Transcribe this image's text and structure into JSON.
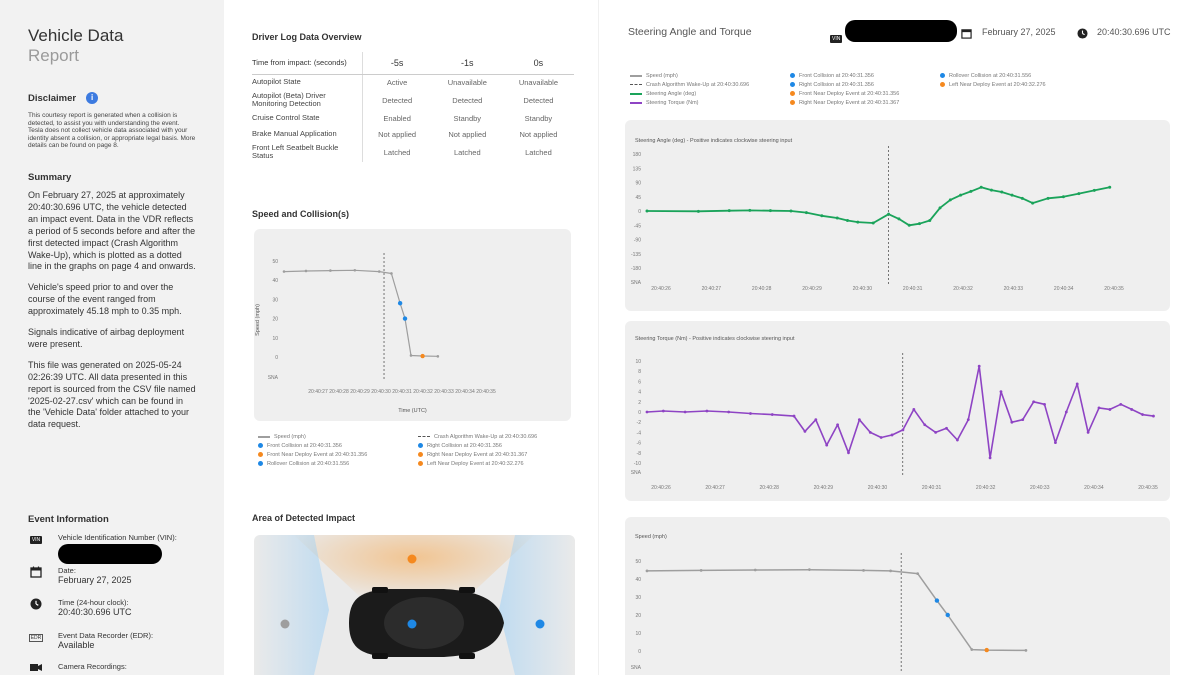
{
  "sidebar": {
    "title": "Vehicle Data",
    "subtitle": "Report",
    "disclaimer_heading": "Disclaimer",
    "disclaimer_text": "This courtesy report is generated when a collision is detected, to assist you with understanding the event. Tesla does not collect vehicle data associated with your identity absent a collision, or appropriate legal basis. More details can be found on page 8.",
    "summary_heading": "Summary",
    "summary_p1": "On February 27, 2025 at approximately 20:40:30.696 UTC, the vehicle detected an impact event. Data in the VDR reflects a period of 5 seconds before and after the first detected impact (Crash Algorithm Wake-Up), which is plotted as a dotted line in the graphs on page 4 and onwards.",
    "summary_p2": "Vehicle's speed prior to and over the course of the event ranged from approximately 45.18 mph to 0.35 mph.",
    "summary_p3": "Signals indicative of airbag deployment were present.",
    "summary_p4": "This file was generated on 2025-05-24 02:26:39 UTC. All data presented in this report is sourced from the CSV file named '2025-02-27.csv' which can be found in the 'Vehicle Data' folder attached to your data request.",
    "event_heading": "Event Information",
    "vin_label": "Vehicle Identification Number (VIN):",
    "date_label": "Date:",
    "date_value": "February 27, 2025",
    "time_label": "Time (24-hour clock):",
    "time_value": "20:40:30.696 UTC",
    "edr_label": "Event Data Recorder (EDR):",
    "edr_value": "Available",
    "camera_label": "Camera Recordings:",
    "vin_badge": "VIN",
    "edr_badge": "EDR"
  },
  "driver_log": {
    "title": "Driver Log Data Overview",
    "header_label": "Time from impact: (seconds)",
    "columns": [
      "-5s",
      "-1s",
      "0s"
    ],
    "rows": [
      {
        "label": "Autopilot State",
        "values": [
          "Active",
          "Unavailable",
          "Unavailable"
        ]
      },
      {
        "label": "Autopilot (Beta) Driver Monitoring Detection",
        "values": [
          "Detected",
          "Detected",
          "Detected"
        ]
      },
      {
        "label": "Cruise Control State",
        "values": [
          "Enabled",
          "Standby",
          "Standby"
        ]
      },
      {
        "label": "Brake Manual Application",
        "values": [
          "Not applied",
          "Not applied",
          "Not applied"
        ]
      },
      {
        "label": "Front Left Seatbelt Buckle Status",
        "values": [
          "Latched",
          "Latched",
          "Latched"
        ]
      }
    ]
  },
  "speed_section": {
    "title": "Speed and Collision(s)",
    "xlabel": "Time (UTC)",
    "ylabel": "Speed (mph)"
  },
  "impact_section": {
    "title": "Area of Detected Impact"
  },
  "right_header": {
    "title": "Steering Angle and Torque",
    "vin_badge": "VIN",
    "date": "February 27, 2025",
    "time": "20:40:30.696 UTC"
  },
  "legends": {
    "speed_chart": [
      {
        "label": "Speed (mph)",
        "kind": "line",
        "color": "#9e9e9e"
      },
      {
        "label": "Crash Algorithm Wake-Up at 20:40:30.696",
        "kind": "dash",
        "color": "#555555"
      },
      {
        "label": "Front Collision at 20:40:31.356",
        "kind": "dot",
        "color": "#1e88e5"
      },
      {
        "label": "Right Collision at 20:40:31.356",
        "kind": "dot",
        "color": "#1e88e5"
      },
      {
        "label": "Front Near Deploy Event at 20:40:31.356",
        "kind": "dot",
        "color": "#f5891f"
      },
      {
        "label": "Right Near Deploy Event at 20:40:31.367",
        "kind": "dot",
        "color": "#f5891f"
      },
      {
        "label": "Rollover Collision at 20:40:31.556",
        "kind": "dot",
        "color": "#1e88e5"
      },
      {
        "label": "Left Near Deploy Event at 20:40:32.276",
        "kind": "dot",
        "color": "#f5891f"
      }
    ],
    "right_top": [
      {
        "label": "Speed (mph)",
        "kind": "line",
        "color": "#9e9e9e"
      },
      {
        "label": "Crash Algorithm Wake-Up at 20:40:30.696",
        "kind": "dash",
        "color": "#555555"
      },
      {
        "label": "Steering Angle (deg)",
        "kind": "line",
        "color": "#1aa35a"
      },
      {
        "label": "Steering Torque (Nm)",
        "kind": "line",
        "color": "#8e44c4"
      },
      {
        "label": "Front Collision at 20:40:31.356",
        "kind": "dot",
        "color": "#1e88e5"
      },
      {
        "label": "Right Collision at 20:40:31.356",
        "kind": "dot",
        "color": "#1e88e5"
      },
      {
        "label": "Front Near Deploy Event at 20:40:31.356",
        "kind": "dot",
        "color": "#f5891f"
      },
      {
        "label": "Right Near Deploy Event at 20:40:31.367",
        "kind": "dot",
        "color": "#f5891f"
      },
      {
        "label": "Rollover Collision at 20:40:31.556",
        "kind": "dot",
        "color": "#1e88e5"
      },
      {
        "label": "Left Near Deploy Event at 20:40:32.276",
        "kind": "dot",
        "color": "#f5891f"
      }
    ]
  },
  "chart_data": [
    {
      "type": "line",
      "id": "speed-small",
      "title": "",
      "xlabel": "Time (UTC)",
      "ylabel": "Speed (mph)",
      "yticks": [
        "50",
        "40",
        "30",
        "20",
        "10",
        "0",
        "SNA"
      ],
      "ylim": [
        0,
        50
      ],
      "xticks": [
        "20:40:27",
        "20:40:28",
        "20:40:29",
        "20:40:30",
        "20:40:31",
        "20:40:32",
        "20:40:33",
        "20:40:34",
        "20:40:35"
      ],
      "xlim": [
        26.6,
        35.2
      ],
      "wakeup_x": 30.696,
      "series": [
        {
          "name": "Speed (mph)",
          "color": "#9e9e9e",
          "x": [
            26.6,
            27.5,
            28.5,
            29.5,
            30.5,
            31.0,
            31.356,
            31.556,
            31.8,
            32.276,
            32.9
          ],
          "y": [
            44.5,
            44.8,
            45.0,
            45.18,
            44.5,
            43.5,
            28,
            20,
            0.8,
            0.5,
            0.35
          ]
        }
      ],
      "markers": [
        {
          "x": 31.356,
          "y": 28,
          "color": "#1e88e5"
        },
        {
          "x": 31.556,
          "y": 20,
          "color": "#1e88e5"
        },
        {
          "x": 32.276,
          "y": 0.5,
          "color": "#f5891f"
        }
      ]
    },
    {
      "type": "line",
      "id": "steering-angle",
      "title": "Steering Angle (deg) - Positive indicates clockwise steering input",
      "yticks": [
        "180",
        "135",
        "90",
        "45",
        "0",
        "-45",
        "-90",
        "-135",
        "-180",
        "SNA"
      ],
      "ylim": [
        -180,
        180
      ],
      "xticks": [
        "20:40:26",
        "20:40:27",
        "20:40:28",
        "20:40:29",
        "20:40:30",
        "20:40:31",
        "20:40:32",
        "20:40:33",
        "20:40:34",
        "20:40:35"
      ],
      "xlim": [
        26,
        35.2
      ],
      "wakeup_x": 30.696,
      "series": [
        {
          "name": "Steering Angle (deg)",
          "color": "#1aa35a",
          "x": [
            26,
            27,
            27.6,
            28,
            28.4,
            28.8,
            29.1,
            29.4,
            29.7,
            29.9,
            30.1,
            30.4,
            30.7,
            30.9,
            31.1,
            31.3,
            31.5,
            31.7,
            31.9,
            32.1,
            32.3,
            32.5,
            32.7,
            32.9,
            33.1,
            33.3,
            33.5,
            33.8,
            34.1,
            34.4,
            34.7,
            35.0
          ],
          "y": [
            0,
            -1,
            1,
            2,
            1,
            0,
            -5,
            -15,
            -22,
            -30,
            -35,
            -38,
            -10,
            -25,
            -45,
            -40,
            -30,
            10,
            35,
            50,
            62,
            75,
            66,
            60,
            50,
            40,
            25,
            40,
            45,
            55,
            65,
            75
          ]
        }
      ]
    },
    {
      "type": "line",
      "id": "steering-torque",
      "title": "Steering Torque (Nm) - Positive indicates clockwise steering input",
      "yticks": [
        "10",
        "8",
        "6",
        "4",
        "2",
        "0",
        "-2",
        "-4",
        "-6",
        "-8",
        "-10",
        "SNA"
      ],
      "ylim": [
        -10,
        10
      ],
      "xticks": [
        "20:40:26",
        "20:40:27",
        "20:40:28",
        "20:40:29",
        "20:40:30",
        "20:40:31",
        "20:40:32",
        "20:40:33",
        "20:40:34",
        "20:40:35"
      ],
      "xlim": [
        26,
        35.2
      ],
      "wakeup_x": 30.696,
      "series": [
        {
          "name": "Steering Torque (Nm)",
          "color": "#8e44c4",
          "x": [
            26,
            26.3,
            26.7,
            27.1,
            27.5,
            27.9,
            28.3,
            28.7,
            28.9,
            29.1,
            29.3,
            29.5,
            29.7,
            29.9,
            30.1,
            30.3,
            30.5,
            30.7,
            30.9,
            31.1,
            31.3,
            31.5,
            31.7,
            31.9,
            32.1,
            32.3,
            32.5,
            32.7,
            32.9,
            33.1,
            33.3,
            33.5,
            33.7,
            33.9,
            34.1,
            34.3,
            34.5,
            34.7,
            34.9,
            35.1,
            35.3
          ],
          "y": [
            0,
            0.2,
            0,
            0.2,
            0,
            -0.3,
            -0.5,
            -0.8,
            -3.8,
            -1.5,
            -6.5,
            -2.5,
            -8,
            -1.5,
            -4,
            -5,
            -4.5,
            -3.5,
            0.5,
            -2.5,
            -4,
            -3.2,
            -5.5,
            -1.5,
            9,
            -9,
            4,
            -2,
            -1.5,
            2,
            1.5,
            -6,
            0,
            5.5,
            -4,
            0.8,
            0.5,
            1.5,
            0.5,
            -0.5,
            -0.8
          ]
        }
      ]
    },
    {
      "type": "line",
      "id": "speed-large",
      "title": "Speed (mph)",
      "yticks": [
        "50",
        "40",
        "30",
        "20",
        "10",
        "0",
        "SNA"
      ],
      "ylim": [
        0,
        50
      ],
      "xticks": [],
      "xlim": [
        26,
        35.2
      ],
      "wakeup_x": 30.696,
      "series": [
        {
          "name": "Speed (mph)",
          "color": "#9e9e9e",
          "x": [
            26,
            27,
            28,
            29,
            30,
            30.5,
            31,
            31.356,
            31.556,
            32.0,
            32.276,
            33.0
          ],
          "y": [
            44.5,
            44.8,
            45.0,
            45.18,
            44.8,
            44.5,
            43.0,
            28,
            20,
            0.8,
            0.5,
            0.35
          ]
        }
      ],
      "markers": [
        {
          "x": 31.356,
          "y": 28,
          "color": "#1e88e5"
        },
        {
          "x": 31.556,
          "y": 20,
          "color": "#1e88e5"
        },
        {
          "x": 32.276,
          "y": 0.5,
          "color": "#f5891f"
        }
      ]
    }
  ]
}
